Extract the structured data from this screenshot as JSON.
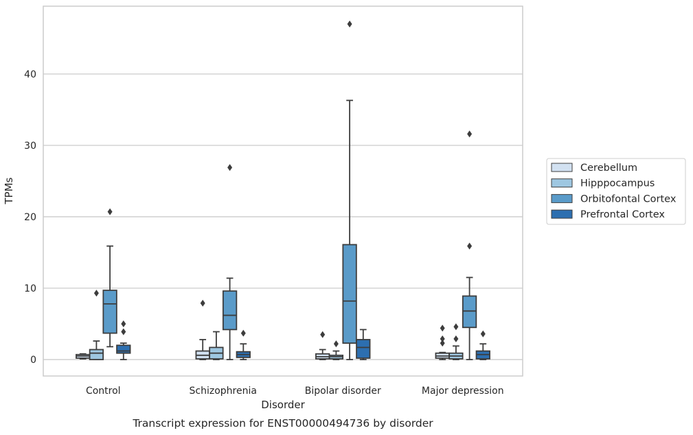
{
  "chart_data": {
    "type": "box",
    "xlabel": "Disorder",
    "ylabel": "TPMs",
    "caption": "Transcript expression for ENST00000494736 by disorder",
    "ylim": [
      -2.3,
      49.5
    ],
    "yticks": [
      0,
      10,
      20,
      30,
      40
    ],
    "grid": "horizontal",
    "legend_position": "center-right",
    "categories": [
      "Control",
      "Schizophrenia",
      "Bipolar disorder",
      "Major depression"
    ],
    "series": [
      {
        "name": "Cerebellum",
        "color": "#d2e1f1",
        "boxes": [
          {
            "whislo": 0.1,
            "q1": 0.2,
            "med": 0.5,
            "q3": 0.7,
            "whishi": 0.8,
            "fliers": []
          },
          {
            "whislo": 0.0,
            "q1": 0.1,
            "med": 0.6,
            "q3": 1.2,
            "whishi": 2.8,
            "fliers": [
              7.9
            ]
          },
          {
            "whislo": 0.0,
            "q1": 0.1,
            "med": 0.4,
            "q3": 0.8,
            "whishi": 1.4,
            "fliers": [
              3.5
            ]
          },
          {
            "whislo": 0.0,
            "q1": 0.2,
            "med": 0.5,
            "q3": 0.9,
            "whishi": 1.0,
            "fliers": [
              2.3,
              2.9,
              4.4
            ]
          }
        ]
      },
      {
        "name": "Hipppocampus",
        "color": "#9ec7e1",
        "boxes": [
          {
            "whislo": 0.0,
            "q1": 0.0,
            "med": 0.9,
            "q3": 1.4,
            "whishi": 2.6,
            "fliers": [
              9.3
            ]
          },
          {
            "whislo": 0.0,
            "q1": 0.1,
            "med": 0.9,
            "q3": 1.7,
            "whishi": 3.9,
            "fliers": []
          },
          {
            "whislo": 0.0,
            "q1": 0.1,
            "med": 0.4,
            "q3": 0.6,
            "whishi": 1.2,
            "fliers": [
              2.2
            ]
          },
          {
            "whislo": 0.0,
            "q1": 0.1,
            "med": 0.5,
            "q3": 0.9,
            "whishi": 1.9,
            "fliers": [
              2.9,
              4.6
            ]
          }
        ]
      },
      {
        "name": "Orbitofontal Cortex",
        "color": "#5a9bc9",
        "boxes": [
          {
            "whislo": 1.8,
            "q1": 3.7,
            "med": 7.8,
            "q3": 9.7,
            "whishi": 15.9,
            "fliers": [
              20.7
            ]
          },
          {
            "whislo": 0.0,
            "q1": 4.2,
            "med": 6.2,
            "q3": 9.6,
            "whishi": 11.4,
            "fliers": [
              26.9
            ]
          },
          {
            "whislo": 0.0,
            "q1": 2.3,
            "med": 8.2,
            "q3": 16.1,
            "whishi": 36.3,
            "fliers": [
              47.0
            ]
          },
          {
            "whislo": 0.0,
            "q1": 4.5,
            "med": 6.8,
            "q3": 8.9,
            "whishi": 11.5,
            "fliers": [
              15.9,
              31.6
            ]
          }
        ]
      },
      {
        "name": "Prefrontal Cortex",
        "color": "#2d6fb0",
        "boxes": [
          {
            "whislo": 0.0,
            "q1": 0.9,
            "med": 1.2,
            "q3": 2.0,
            "whishi": 2.3,
            "fliers": [
              3.9,
              5.0
            ]
          },
          {
            "whislo": 0.0,
            "q1": 0.3,
            "med": 0.7,
            "q3": 1.1,
            "whishi": 2.2,
            "fliers": [
              3.7
            ]
          },
          {
            "whislo": 0.0,
            "q1": 0.2,
            "med": 1.7,
            "q3": 2.8,
            "whishi": 4.2,
            "fliers": []
          },
          {
            "whislo": 0.0,
            "q1": 0.1,
            "med": 0.7,
            "q3": 1.2,
            "whishi": 2.2,
            "fliers": [
              3.6
            ]
          }
        ]
      }
    ]
  }
}
